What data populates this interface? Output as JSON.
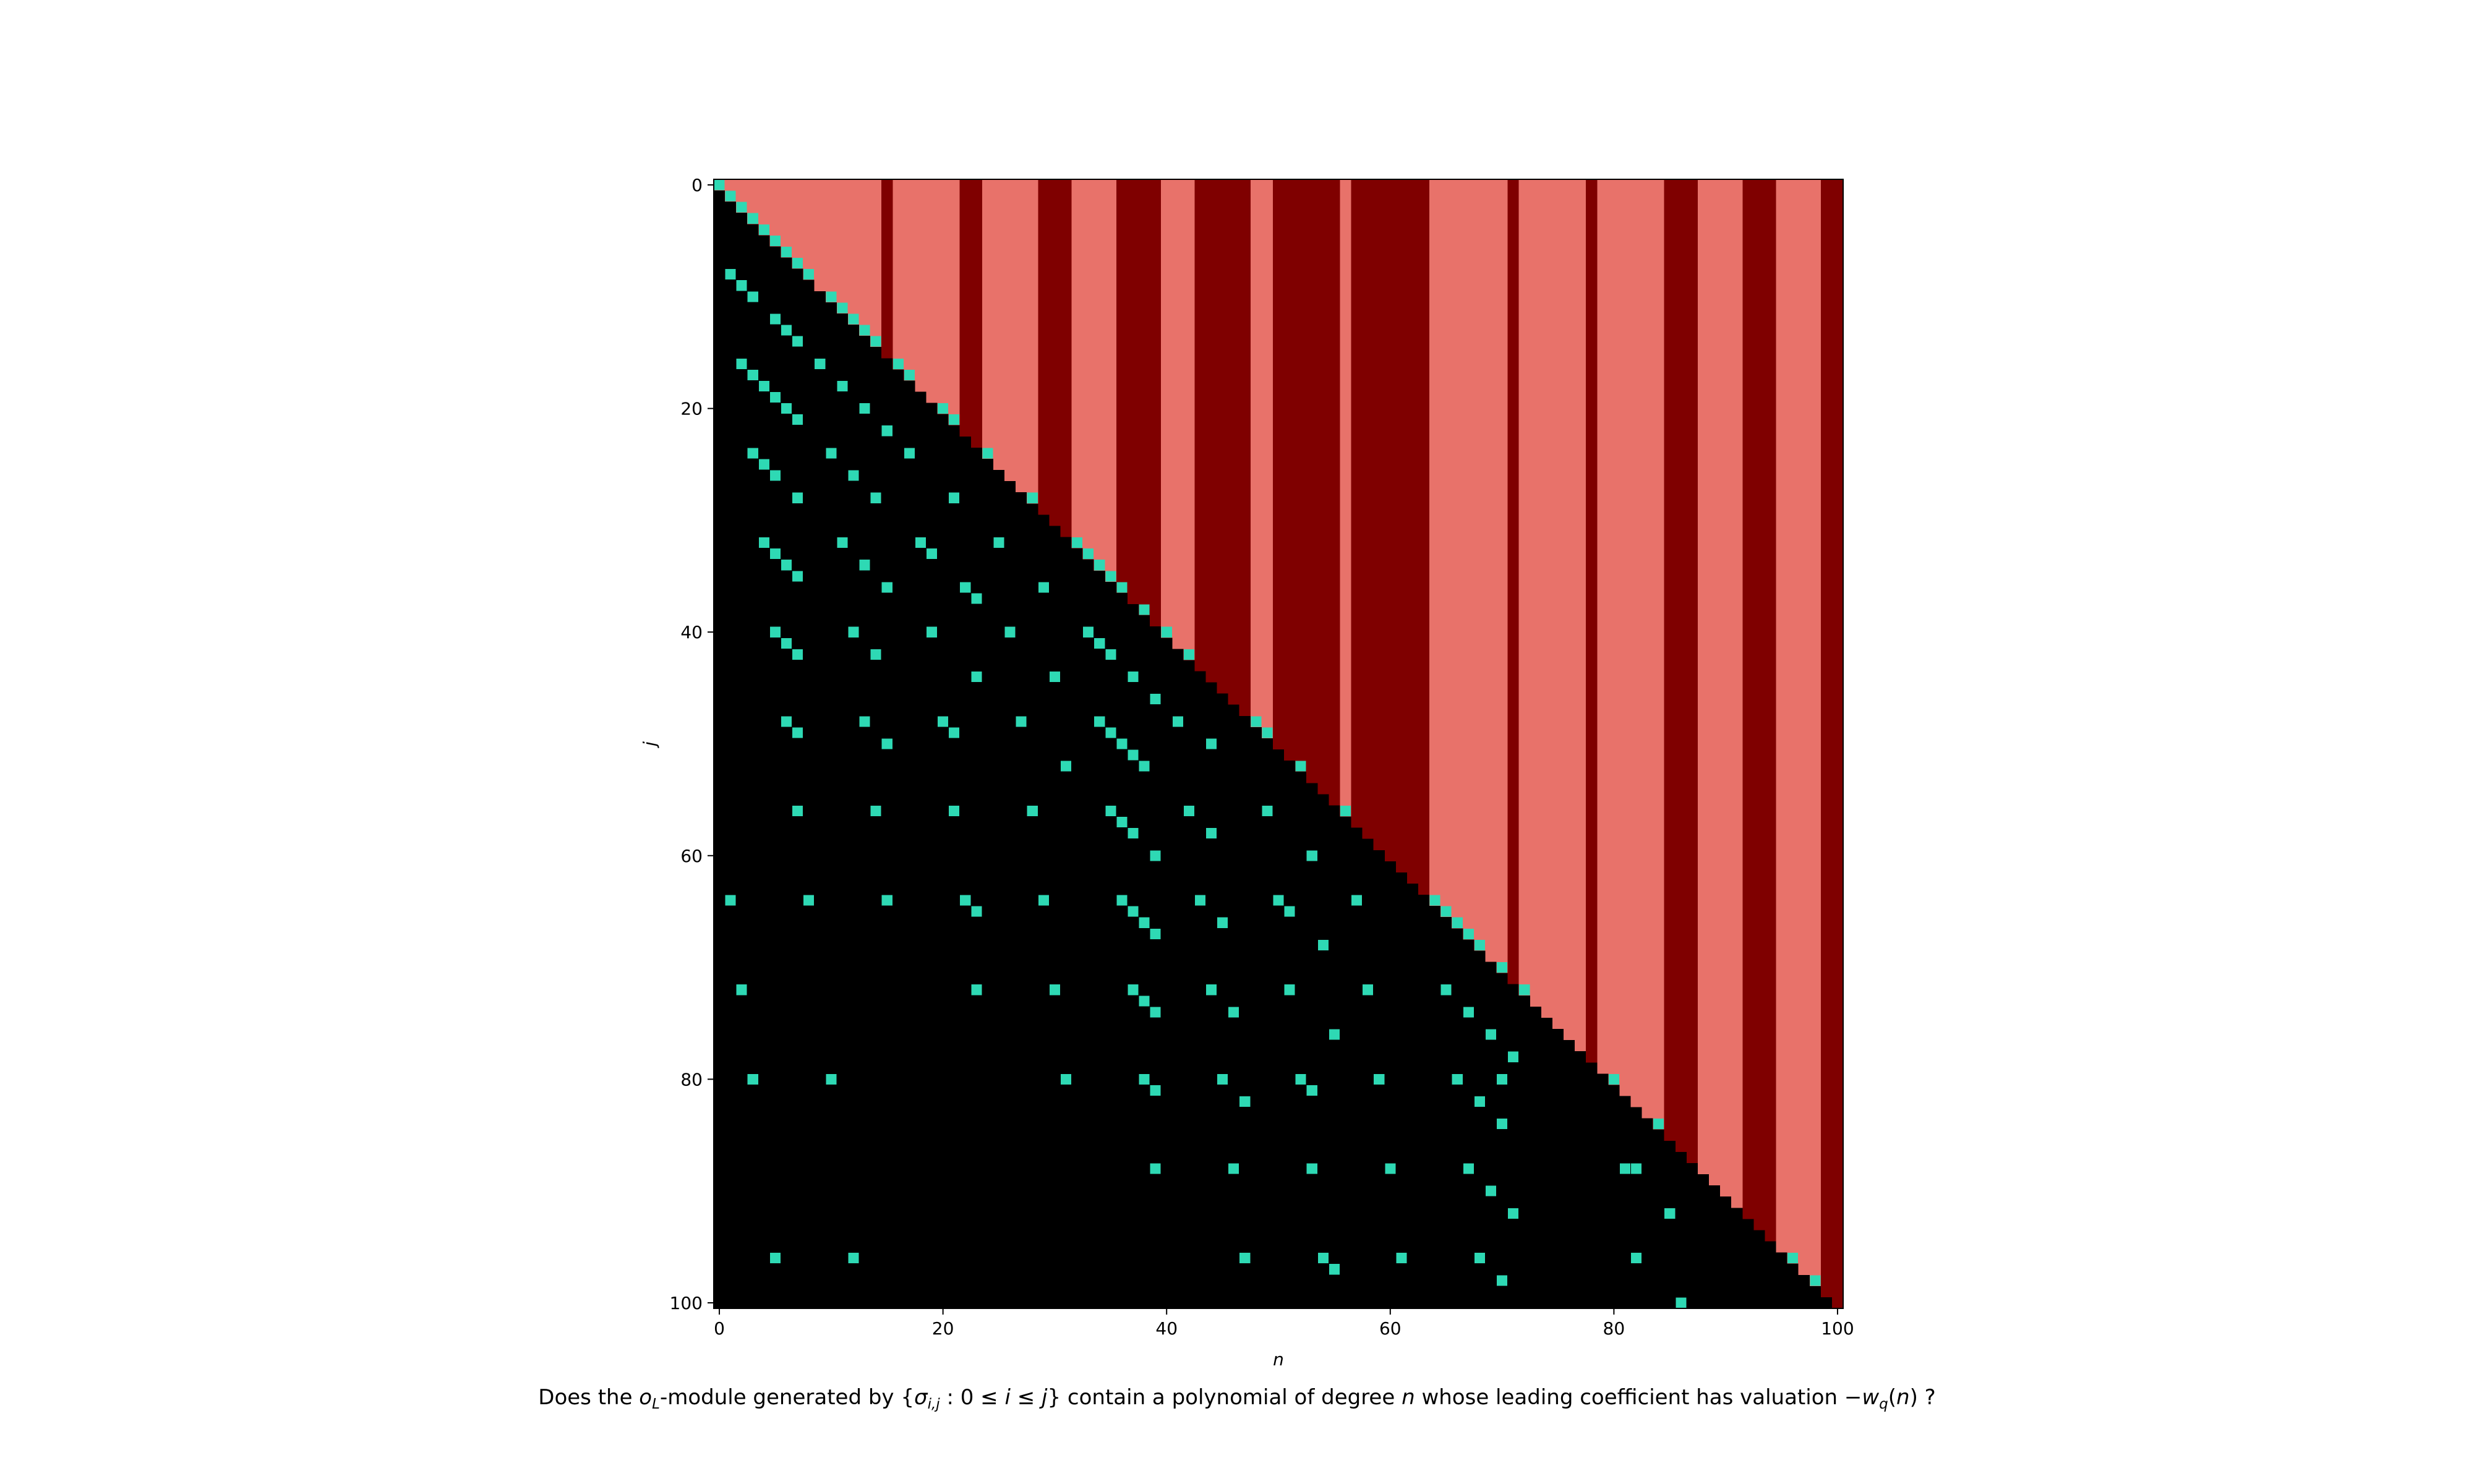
{
  "chart_data": {
    "type": "heatmap",
    "title": "",
    "xlabel": "n",
    "ylabel": "j",
    "xlim": [
      0,
      100
    ],
    "ylim": [
      100,
      0
    ],
    "x_ticks": [
      "0",
      "20",
      "40",
      "60",
      "80",
      "100"
    ],
    "y_ticks": [
      "0",
      "20",
      "40",
      "60",
      "80",
      "100"
    ],
    "grid": false,
    "legend": "none",
    "caption": {
      "pre": "Does the ",
      "o": "o",
      "o_sub": "L",
      "mid1": "-module generated by {",
      "sigma": "σ",
      "sigma_sub": "i,j",
      "mid2": " : 0 ≤ ",
      "i": "i",
      "le": " ≤ ",
      "j": "j",
      "mid3": "} contain a polynomial of degree ",
      "n": "n",
      "mid4": " whose leading coefficient has valuation −",
      "w": "w",
      "w_sub": "q",
      "open": "(",
      "arg": "n",
      "close": ") ?"
    },
    "colors": {
      "empty_region": "#000000",
      "light_cell": "#e8726a",
      "dark_cell": "#7f0000",
      "marker": "#2ed9b4"
    },
    "cell_rule": "cells with n < j are empty (black); cells with n >= j are light or dark red by column n; marker cells are highlighted",
    "dark_columns": [
      15,
      22,
      23,
      29,
      30,
      31,
      36,
      37,
      38,
      39,
      43,
      44,
      45,
      46,
      47,
      50,
      51,
      52,
      53,
      54,
      55,
      57,
      58,
      59,
      60,
      61,
      62,
      63,
      71,
      78,
      85,
      86,
      87,
      92,
      93,
      94,
      99,
      100
    ],
    "markers": [
      [
        0,
        0
      ],
      [
        1,
        1
      ],
      [
        2,
        2
      ],
      [
        3,
        3
      ],
      [
        4,
        4
      ],
      [
        5,
        5
      ],
      [
        6,
        6
      ],
      [
        7,
        7
      ],
      [
        8,
        8
      ],
      [
        10,
        10
      ],
      [
        11,
        11
      ],
      [
        12,
        12
      ],
      [
        13,
        13
      ],
      [
        14,
        14
      ],
      [
        1,
        8
      ],
      [
        2,
        9
      ],
      [
        3,
        10
      ],
      [
        5,
        12
      ],
      [
        6,
        13
      ],
      [
        7,
        14
      ],
      [
        9,
        16
      ],
      [
        11,
        18
      ],
      [
        13,
        20
      ],
      [
        2,
        16
      ],
      [
        3,
        17
      ],
      [
        4,
        18
      ],
      [
        5,
        19
      ],
      [
        6,
        20
      ],
      [
        7,
        21
      ],
      [
        16,
        16
      ],
      [
        17,
        17
      ],
      [
        20,
        20
      ],
      [
        21,
        21
      ],
      [
        3,
        24
      ],
      [
        4,
        25
      ],
      [
        5,
        26
      ],
      [
        7,
        28
      ],
      [
        10,
        24
      ],
      [
        12,
        26
      ],
      [
        14,
        28
      ],
      [
        15,
        22
      ],
      [
        17,
        24
      ],
      [
        21,
        28
      ],
      [
        4,
        32
      ],
      [
        5,
        33
      ],
      [
        6,
        34
      ],
      [
        7,
        35
      ],
      [
        11,
        32
      ],
      [
        13,
        34
      ],
      [
        15,
        36
      ],
      [
        18,
        32
      ],
      [
        19,
        33
      ],
      [
        22,
        36
      ],
      [
        23,
        37
      ],
      [
        24,
        24
      ],
      [
        25,
        32
      ],
      [
        28,
        28
      ],
      [
        5,
        40
      ],
      [
        6,
        41
      ],
      [
        7,
        42
      ],
      [
        12,
        40
      ],
      [
        14,
        42
      ],
      [
        19,
        40
      ],
      [
        23,
        44
      ],
      [
        26,
        40
      ],
      [
        29,
        36
      ],
      [
        30,
        44
      ],
      [
        32,
        32
      ],
      [
        33,
        33
      ],
      [
        34,
        34
      ],
      [
        35,
        35
      ],
      [
        36,
        36
      ],
      [
        38,
        38
      ],
      [
        40,
        40
      ],
      [
        42,
        42
      ],
      [
        6,
        48
      ],
      [
        7,
        49
      ],
      [
        13,
        48
      ],
      [
        15,
        50
      ],
      [
        20,
        48
      ],
      [
        21,
        49
      ],
      [
        27,
        48
      ],
      [
        31,
        52
      ],
      [
        33,
        40
      ],
      [
        34,
        41
      ],
      [
        35,
        42
      ],
      [
        37,
        44
      ],
      [
        39,
        46
      ],
      [
        41,
        48
      ],
      [
        44,
        50
      ],
      [
        48,
        48
      ],
      [
        49,
        49
      ],
      [
        7,
        56
      ],
      [
        14,
        56
      ],
      [
        21,
        56
      ],
      [
        28,
        56
      ],
      [
        34,
        48
      ],
      [
        35,
        49
      ],
      [
        36,
        50
      ],
      [
        37,
        51
      ],
      [
        38,
        52
      ],
      [
        35,
        56
      ],
      [
        36,
        57
      ],
      [
        37,
        58
      ],
      [
        39,
        60
      ],
      [
        42,
        56
      ],
      [
        44,
        58
      ],
      [
        49,
        56
      ],
      [
        52,
        52
      ],
      [
        56,
        56
      ],
      [
        1,
        64
      ],
      [
        8,
        64
      ],
      [
        15,
        64
      ],
      [
        22,
        64
      ],
      [
        23,
        65
      ],
      [
        29,
        64
      ],
      [
        36,
        64
      ],
      [
        37,
        65
      ],
      [
        38,
        66
      ],
      [
        39,
        67
      ],
      [
        43,
        64
      ],
      [
        45,
        66
      ],
      [
        50,
        64
      ],
      [
        51,
        65
      ],
      [
        53,
        60
      ],
      [
        54,
        68
      ],
      [
        57,
        64
      ],
      [
        64,
        64
      ],
      [
        65,
        65
      ],
      [
        66,
        66
      ],
      [
        67,
        67
      ],
      [
        68,
        68
      ],
      [
        70,
        70
      ],
      [
        2,
        72
      ],
      [
        23,
        72
      ],
      [
        30,
        72
      ],
      [
        37,
        72
      ],
      [
        38,
        73
      ],
      [
        39,
        74
      ],
      [
        44,
        72
      ],
      [
        46,
        74
      ],
      [
        51,
        72
      ],
      [
        55,
        76
      ],
      [
        58,
        72
      ],
      [
        65,
        72
      ],
      [
        67,
        74
      ],
      [
        69,
        76
      ],
      [
        71,
        78
      ],
      [
        70,
        80
      ],
      [
        72,
        72
      ],
      [
        3,
        80
      ],
      [
        10,
        80
      ],
      [
        31,
        80
      ],
      [
        38,
        80
      ],
      [
        39,
        81
      ],
      [
        45,
        80
      ],
      [
        47,
        82
      ],
      [
        52,
        80
      ],
      [
        53,
        81
      ],
      [
        59,
        80
      ],
      [
        66,
        80
      ],
      [
        68,
        82
      ],
      [
        70,
        84
      ],
      [
        80,
        80
      ],
      [
        82,
        88
      ],
      [
        84,
        84
      ],
      [
        39,
        88
      ],
      [
        46,
        88
      ],
      [
        53,
        88
      ],
      [
        60,
        88
      ],
      [
        67,
        88
      ],
      [
        69,
        90
      ],
      [
        71,
        92
      ],
      [
        81,
        88
      ],
      [
        85,
        92
      ],
      [
        5,
        96
      ],
      [
        12,
        96
      ],
      [
        47,
        96
      ],
      [
        54,
        96
      ],
      [
        55,
        97
      ],
      [
        61,
        96
      ],
      [
        68,
        96
      ],
      [
        70,
        98
      ],
      [
        82,
        96
      ],
      [
        96,
        96
      ],
      [
        98,
        98
      ],
      [
        86,
        100
      ]
    ]
  }
}
